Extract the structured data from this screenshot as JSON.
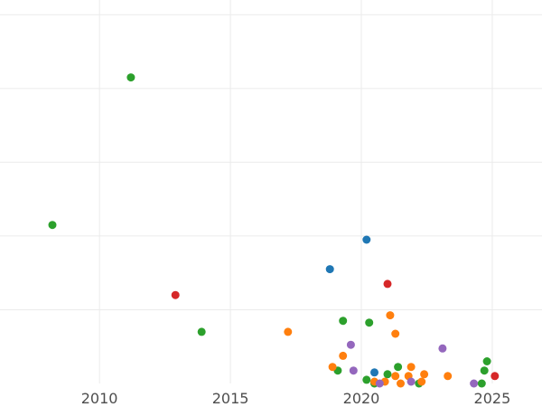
{
  "chart_data": {
    "type": "scatter",
    "title": "",
    "xlabel": "",
    "ylabel": "",
    "xlim": [
      2006.2,
      2026.9
    ],
    "ylim": [
      0,
      10.4
    ],
    "x_ticks": [
      2010,
      2015,
      2020,
      2025
    ],
    "x_tick_labels": [
      "2010",
      "2015",
      "2020",
      "2025"
    ],
    "y_gridlines": [
      2,
      4,
      6,
      8,
      10
    ],
    "grid": true,
    "legend": "none",
    "series": [
      {
        "name": "green",
        "color": "#2ca02c",
        "points": [
          {
            "x": 2011.2,
            "y": 8.3
          },
          {
            "x": 2008.2,
            "y": 4.3
          },
          {
            "x": 2013.9,
            "y": 1.4
          },
          {
            "x": 2019.3,
            "y": 1.7
          },
          {
            "x": 2020.3,
            "y": 1.65
          },
          {
            "x": 2019.1,
            "y": 0.35
          },
          {
            "x": 2020.2,
            "y": 0.1
          },
          {
            "x": 2020.5,
            "y": 0.0
          },
          {
            "x": 2021.0,
            "y": 0.25
          },
          {
            "x": 2021.4,
            "y": 0.45
          },
          {
            "x": 2022.2,
            "y": 0.0
          },
          {
            "x": 2024.6,
            "y": 0.0
          },
          {
            "x": 2024.7,
            "y": 0.35
          },
          {
            "x": 2024.8,
            "y": 0.6
          }
        ]
      },
      {
        "name": "blue",
        "color": "#1f77b4",
        "points": [
          {
            "x": 2020.2,
            "y": 3.9
          },
          {
            "x": 2018.8,
            "y": 3.1
          },
          {
            "x": 2020.5,
            "y": 0.3
          }
        ]
      },
      {
        "name": "red",
        "color": "#d62728",
        "points": [
          {
            "x": 2012.9,
            "y": 2.4
          },
          {
            "x": 2021.0,
            "y": 2.7
          },
          {
            "x": 2025.1,
            "y": 0.2
          }
        ]
      },
      {
        "name": "orange",
        "color": "#ff7f0e",
        "points": [
          {
            "x": 2017.2,
            "y": 1.4
          },
          {
            "x": 2021.1,
            "y": 1.85
          },
          {
            "x": 2021.3,
            "y": 1.35
          },
          {
            "x": 2019.3,
            "y": 0.75
          },
          {
            "x": 2018.9,
            "y": 0.45
          },
          {
            "x": 2020.5,
            "y": 0.05
          },
          {
            "x": 2020.9,
            "y": 0.05
          },
          {
            "x": 2021.3,
            "y": 0.2
          },
          {
            "x": 2021.5,
            "y": 0.0
          },
          {
            "x": 2021.8,
            "y": 0.2
          },
          {
            "x": 2021.9,
            "y": 0.45
          },
          {
            "x": 2022.3,
            "y": 0.05
          },
          {
            "x": 2022.4,
            "y": 0.25
          },
          {
            "x": 2023.3,
            "y": 0.2
          }
        ]
      },
      {
        "name": "purple",
        "color": "#9467bd",
        "points": [
          {
            "x": 2019.6,
            "y": 1.05
          },
          {
            "x": 2019.7,
            "y": 0.35
          },
          {
            "x": 2020.7,
            "y": 0.0
          },
          {
            "x": 2021.9,
            "y": 0.05
          },
          {
            "x": 2023.1,
            "y": 0.95
          },
          {
            "x": 2024.3,
            "y": 0.0
          }
        ]
      }
    ]
  }
}
